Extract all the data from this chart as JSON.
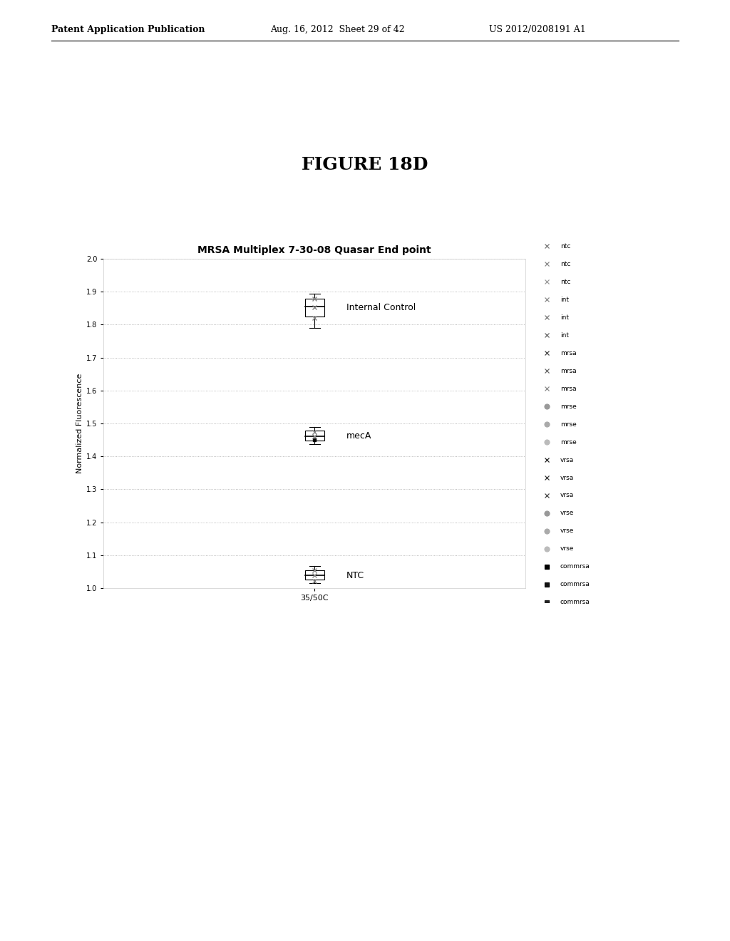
{
  "title": "MRSA Multiplex 7-30-08 Quasar End point",
  "figure_title": "FIGURE 18D",
  "ylabel": "Normalized Fluorescence",
  "xlabel": "35/50C",
  "ylim": [
    1.0,
    2.0
  ],
  "yticks": [
    1.0,
    1.1,
    1.2,
    1.3,
    1.4,
    1.5,
    1.6,
    1.7,
    1.8,
    1.9,
    2.0
  ],
  "box_plots": [
    {
      "label": "Internal Control",
      "x": 1,
      "median": 1.855,
      "q1": 1.825,
      "q3": 1.878,
      "whisker_low": 1.79,
      "whisker_high": 1.895
    },
    {
      "label": "mecA",
      "x": 1,
      "median": 1.462,
      "q1": 1.448,
      "q3": 1.478,
      "whisker_low": 1.438,
      "whisker_high": 1.49
    },
    {
      "label": "NTC",
      "x": 1,
      "median": 1.038,
      "q1": 1.025,
      "q3": 1.055,
      "whisker_low": 1.015,
      "whisker_high": 1.068
    }
  ],
  "legend_entries": [
    {
      "label": "ntc",
      "marker": "x",
      "color": "#888888"
    },
    {
      "label": "ntc",
      "marker": "x",
      "color": "#777777"
    },
    {
      "label": "ntc",
      "marker": "x",
      "color": "#666666"
    },
    {
      "label": "int",
      "marker": "x",
      "color": "#888888"
    },
    {
      "label": "int",
      "marker": "x",
      "color": "#777777"
    },
    {
      "label": "int",
      "marker": "x",
      "color": "#666666"
    },
    {
      "label": "mrsa",
      "marker": "x",
      "color": "#555555"
    },
    {
      "label": "mrsa",
      "marker": "x",
      "color": "#777777"
    },
    {
      "label": "mrsa",
      "marker": "x",
      "color": "#888888"
    },
    {
      "label": "mrse",
      "marker": "o",
      "color": "#aaaaaa"
    },
    {
      "label": "mrse",
      "marker": "o",
      "color": "#bbbbbb"
    },
    {
      "label": "mrse",
      "marker": "o",
      "color": "#cccccc"
    },
    {
      "label": "vrsa",
      "marker": "x",
      "color": "#333333"
    },
    {
      "label": "vrsa",
      "marker": "x",
      "color": "#444444"
    },
    {
      "label": "vrsa",
      "marker": "x",
      "color": "#555555"
    },
    {
      "label": "vrse",
      "marker": "o",
      "color": "#aaaaaa"
    },
    {
      "label": "vrse",
      "marker": "o",
      "color": "#bbbbbb"
    },
    {
      "label": "vrse",
      "marker": "o",
      "color": "#cccccc"
    },
    {
      "label": "commrsa",
      "marker": "s",
      "color": "#000000"
    },
    {
      "label": "commrsa",
      "marker": "s",
      "color": "#111111"
    },
    {
      "label": "commrsa",
      "marker": "s",
      "color": "#222222"
    }
  ],
  "outer_bg": "#666666",
  "chart_bg": "#ffffff",
  "fig_bg": "#ffffff",
  "patent_left": "Patent Application Publication",
  "patent_mid": "Aug. 16, 2012  Sheet 29 of 42",
  "patent_right": "US 2012/0208191 A1"
}
